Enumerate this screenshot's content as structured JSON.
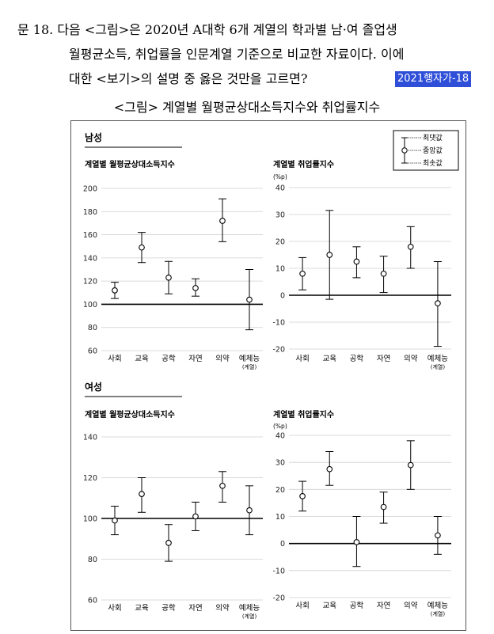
{
  "question": {
    "line1": "문 18. 다음 <그림>은 2020년 A대학 6개 계열의 학과별 남·여 졸업생",
    "line2": "월평균소득, 취업률을 인문계열 기준으로 비교한 자료이다. 이에",
    "line3": "대한 <보기>의 설명 중 옳은 것만을 고르면?",
    "tag": "2021행자가-18"
  },
  "figure_title": "<그림> 계열별 월평균상대소득지수와 취업률지수",
  "legend": {
    "max": "최댓값",
    "median": "중앙값",
    "min": "최솟값"
  },
  "sections": {
    "male": "남성",
    "female": "여성"
  },
  "category_note": "(계열)",
  "chart_data": [
    {
      "type": "errorbar",
      "section": "남성",
      "title": "계열별 월평균상대소득지수",
      "ylabel": "",
      "categories": [
        "사회",
        "교육",
        "공학",
        "자연",
        "의약",
        "예체능"
      ],
      "median": [
        112,
        149,
        123,
        114,
        172,
        104
      ],
      "max": [
        119,
        162,
        137,
        122,
        191,
        130
      ],
      "min": [
        105,
        136,
        109,
        107,
        154,
        78
      ],
      "ylim": [
        60,
        200
      ],
      "ticks": [
        60,
        80,
        100,
        120,
        140,
        160,
        180,
        200
      ],
      "reference": 100
    },
    {
      "type": "errorbar",
      "section": "남성",
      "title": "계열별 취업률지수",
      "ylabel": "(%p)",
      "categories": [
        "사회",
        "교육",
        "공학",
        "자연",
        "의약",
        "예체능"
      ],
      "median": [
        8,
        15,
        12.5,
        8,
        18,
        -3
      ],
      "max": [
        14,
        31.5,
        18,
        14.5,
        25.5,
        12.5
      ],
      "min": [
        2,
        -1.5,
        6.5,
        1,
        10,
        -19
      ],
      "ylim": [
        -20,
        40
      ],
      "ticks": [
        -20,
        -10,
        0,
        10,
        20,
        30,
        40
      ],
      "reference": 0
    },
    {
      "type": "errorbar",
      "section": "여성",
      "title": "계열별 월평균상대소득지수",
      "ylabel": "",
      "categories": [
        "사회",
        "교육",
        "공학",
        "자연",
        "의약",
        "예체능"
      ],
      "median": [
        99,
        112,
        88,
        101,
        116,
        104
      ],
      "max": [
        106,
        120,
        97,
        108,
        123,
        116
      ],
      "min": [
        92,
        103,
        79,
        94,
        108,
        92
      ],
      "ylim": [
        60,
        140
      ],
      "ticks": [
        60,
        80,
        100,
        120,
        140
      ],
      "reference": 100
    },
    {
      "type": "errorbar",
      "section": "여성",
      "title": "계열별 취업률지수",
      "ylabel": "(%p)",
      "categories": [
        "사회",
        "교육",
        "공학",
        "자연",
        "의약",
        "예체능"
      ],
      "median": [
        17.5,
        27.5,
        0.5,
        13.5,
        29,
        3
      ],
      "max": [
        23,
        34,
        10,
        19,
        38,
        10
      ],
      "min": [
        12,
        21.5,
        -8.5,
        7.5,
        20,
        -4
      ],
      "ylim": [
        -20,
        40
      ],
      "ticks": [
        -20,
        -10,
        0,
        10,
        20,
        30,
        40
      ],
      "reference": 0
    }
  ]
}
